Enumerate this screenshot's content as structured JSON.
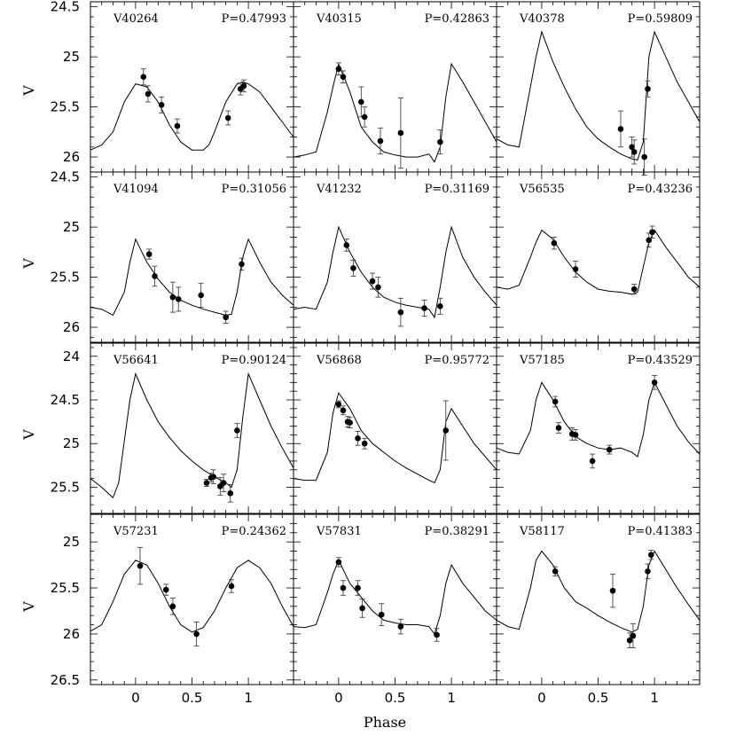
{
  "figure": {
    "xlabel": "Phase",
    "ylabel": "V",
    "xticks": [
      {
        "value": 0,
        "label": "0"
      },
      {
        "value": 0.5,
        "label": "0.5"
      },
      {
        "value": 1,
        "label": "1"
      }
    ]
  },
  "chart_data": [
    {
      "type": "scatter",
      "star": "V40264",
      "period": "P=0.47993",
      "xlim": [
        -0.4,
        1.4
      ],
      "ylim": [
        26.15,
        24.45
      ],
      "yticks": [
        "24.5",
        "25",
        "25.5",
        "26"
      ],
      "template": {
        "x": [
          -0.4,
          -0.3,
          -0.2,
          -0.1,
          0.0,
          0.1,
          0.2,
          0.3,
          0.4,
          0.5,
          0.6,
          0.65,
          0.7,
          0.8,
          0.9,
          0.95,
          1.0,
          1.1,
          1.2,
          1.3,
          1.4
        ],
        "y": [
          25.93,
          25.88,
          25.75,
          25.45,
          25.27,
          25.3,
          25.45,
          25.68,
          25.85,
          25.93,
          25.93,
          25.88,
          25.75,
          25.45,
          25.27,
          25.25,
          25.27,
          25.35,
          25.5,
          25.65,
          25.8
        ]
      },
      "points": [
        {
          "x": 0.07,
          "y": 25.2,
          "err": 0.08
        },
        {
          "x": 0.11,
          "y": 25.37,
          "err": 0.08
        },
        {
          "x": 0.23,
          "y": 25.48,
          "err": 0.08
        },
        {
          "x": 0.37,
          "y": 25.69,
          "err": 0.07
        },
        {
          "x": 0.82,
          "y": 25.61,
          "err": 0.07
        },
        {
          "x": 0.93,
          "y": 25.32,
          "err": 0.06
        },
        {
          "x": 0.96,
          "y": 25.29,
          "err": 0.06
        }
      ]
    },
    {
      "type": "scatter",
      "star": "V40315",
      "period": "P=0.42863",
      "xlim": [
        -0.4,
        1.4
      ],
      "ylim": [
        26.15,
        24.45
      ],
      "yticks": [
        "24.5",
        "25",
        "25.5",
        "26"
      ],
      "template": {
        "x": [
          -0.4,
          -0.3,
          -0.2,
          -0.1,
          -0.05,
          0.0,
          0.1,
          0.2,
          0.3,
          0.4,
          0.5,
          0.6,
          0.7,
          0.8,
          0.85,
          0.9,
          0.95,
          1.0,
          1.1,
          1.2,
          1.3,
          1.4
        ],
        "y": [
          26.0,
          25.98,
          25.95,
          25.55,
          25.3,
          25.07,
          25.35,
          25.7,
          25.85,
          25.95,
          25.98,
          26.0,
          26.0,
          25.97,
          26.05,
          25.9,
          25.4,
          25.07,
          25.25,
          25.45,
          25.65,
          25.85
        ]
      },
      "points": [
        {
          "x": 0.0,
          "y": 25.12,
          "err": 0.06
        },
        {
          "x": 0.04,
          "y": 25.2,
          "err": 0.06
        },
        {
          "x": 0.2,
          "y": 25.45,
          "err": 0.15
        },
        {
          "x": 0.23,
          "y": 25.6,
          "err": 0.1
        },
        {
          "x": 0.37,
          "y": 25.84,
          "err": 0.13
        },
        {
          "x": 0.55,
          "y": 25.76,
          "err": 0.35
        },
        {
          "x": 0.9,
          "y": 25.85,
          "err": 0.12
        }
      ]
    },
    {
      "type": "scatter",
      "star": "V40378",
      "period": "P=0.59809",
      "xlim": [
        -0.4,
        1.4
      ],
      "ylim": [
        26.15,
        24.45
      ],
      "yticks": [
        "24.5",
        "25",
        "25.5",
        "26"
      ],
      "template": {
        "x": [
          -0.4,
          -0.3,
          -0.2,
          -0.1,
          -0.05,
          0.0,
          0.1,
          0.2,
          0.3,
          0.4,
          0.5,
          0.6,
          0.7,
          0.8,
          0.85,
          0.9,
          0.95,
          1.0,
          1.1,
          1.2,
          1.3,
          1.4
        ],
        "y": [
          25.82,
          25.88,
          25.9,
          25.3,
          25.0,
          24.75,
          25.05,
          25.3,
          25.52,
          25.7,
          25.82,
          25.9,
          25.97,
          26.02,
          26.03,
          25.85,
          25.0,
          24.75,
          25.0,
          25.25,
          25.45,
          25.65
        ]
      },
      "points": [
        {
          "x": 0.7,
          "y": 25.72,
          "err": 0.18
        },
        {
          "x": 0.8,
          "y": 25.9,
          "err": 0.1
        },
        {
          "x": 0.82,
          "y": 25.95,
          "err": 0.12
        },
        {
          "x": 0.91,
          "y": 26.0,
          "err": 0.18
        },
        {
          "x": 0.94,
          "y": 25.32,
          "err": 0.08
        }
      ]
    },
    {
      "type": "scatter",
      "star": "V41094",
      "period": "P=0.31056",
      "xlim": [
        -0.4,
        1.4
      ],
      "ylim": [
        26.15,
        24.45
      ],
      "yticks": [
        "24.5",
        "25",
        "25.5",
        "26"
      ],
      "template": {
        "x": [
          -0.4,
          -0.3,
          -0.2,
          -0.1,
          -0.05,
          0.0,
          0.1,
          0.2,
          0.3,
          0.4,
          0.5,
          0.6,
          0.7,
          0.8,
          0.85,
          0.9,
          0.95,
          1.0,
          1.1,
          1.2,
          1.3,
          1.4
        ],
        "y": [
          25.8,
          25.82,
          25.88,
          25.65,
          25.35,
          25.12,
          25.35,
          25.52,
          25.65,
          25.73,
          25.78,
          25.82,
          25.85,
          25.88,
          25.87,
          25.65,
          25.3,
          25.12,
          25.35,
          25.55,
          25.68,
          25.78
        ]
      },
      "points": [
        {
          "x": 0.12,
          "y": 25.27,
          "err": 0.05
        },
        {
          "x": 0.17,
          "y": 25.49,
          "err": 0.1
        },
        {
          "x": 0.33,
          "y": 25.7,
          "err": 0.15
        },
        {
          "x": 0.38,
          "y": 25.72,
          "err": 0.12
        },
        {
          "x": 0.58,
          "y": 25.68,
          "err": 0.12
        },
        {
          "x": 0.8,
          "y": 25.9,
          "err": 0.06
        },
        {
          "x": 0.94,
          "y": 25.37,
          "err": 0.06
        }
      ]
    },
    {
      "type": "scatter",
      "star": "V41232",
      "period": "P=0.31169",
      "xlim": [
        -0.4,
        1.4
      ],
      "ylim": [
        26.15,
        24.45
      ],
      "yticks": [
        "24.5",
        "25",
        "25.5",
        "26"
      ],
      "template": {
        "x": [
          -0.4,
          -0.3,
          -0.2,
          -0.1,
          -0.05,
          0.0,
          0.1,
          0.2,
          0.3,
          0.4,
          0.5,
          0.6,
          0.7,
          0.8,
          0.85,
          0.9,
          0.95,
          1.0,
          1.1,
          1.2,
          1.3,
          1.4
        ],
        "y": [
          25.82,
          25.8,
          25.82,
          25.55,
          25.25,
          25.0,
          25.25,
          25.45,
          25.6,
          25.7,
          25.75,
          25.78,
          25.8,
          25.82,
          25.9,
          25.6,
          25.25,
          25.0,
          25.3,
          25.5,
          25.65,
          25.78
        ]
      },
      "points": [
        {
          "x": 0.07,
          "y": 25.18,
          "err": 0.06
        },
        {
          "x": 0.13,
          "y": 25.41,
          "err": 0.08
        },
        {
          "x": 0.3,
          "y": 25.54,
          "err": 0.08
        },
        {
          "x": 0.35,
          "y": 25.6,
          "err": 0.1
        },
        {
          "x": 0.55,
          "y": 25.85,
          "err": 0.14
        },
        {
          "x": 0.76,
          "y": 25.81,
          "err": 0.08
        },
        {
          "x": 0.9,
          "y": 25.79,
          "err": 0.08
        }
      ]
    },
    {
      "type": "scatter",
      "star": "V56535",
      "period": "P=0.43236",
      "xlim": [
        -0.4,
        1.4
      ],
      "ylim": [
        26.15,
        24.45
      ],
      "yticks": [
        "24.5",
        "25",
        "25.5",
        "26"
      ],
      "template": {
        "x": [
          -0.4,
          -0.3,
          -0.2,
          -0.1,
          -0.05,
          0.0,
          0.1,
          0.2,
          0.3,
          0.4,
          0.5,
          0.6,
          0.7,
          0.8,
          0.85,
          0.9,
          0.95,
          1.0,
          1.1,
          1.2,
          1.3,
          1.4
        ],
        "y": [
          25.6,
          25.62,
          25.58,
          25.3,
          25.15,
          25.03,
          25.12,
          25.3,
          25.45,
          25.55,
          25.62,
          25.64,
          25.65,
          25.67,
          25.65,
          25.4,
          25.15,
          25.03,
          25.2,
          25.35,
          25.5,
          25.6
        ]
      },
      "points": [
        {
          "x": 0.11,
          "y": 25.16,
          "err": 0.06
        },
        {
          "x": 0.3,
          "y": 25.42,
          "err": 0.08
        },
        {
          "x": 0.82,
          "y": 25.62,
          "err": 0.05
        },
        {
          "x": 0.95,
          "y": 25.13,
          "err": 0.07
        },
        {
          "x": 0.98,
          "y": 25.05,
          "err": 0.06
        }
      ]
    },
    {
      "type": "scatter",
      "star": "V56641",
      "period": "P=0.90124",
      "xlim": [
        -0.4,
        1.4
      ],
      "ylim": [
        25.8,
        23.85
      ],
      "yticks": [
        "24",
        "24.5",
        "25",
        "25.5"
      ],
      "template": {
        "x": [
          -0.4,
          -0.3,
          -0.2,
          -0.15,
          -0.05,
          0.0,
          0.1,
          0.2,
          0.3,
          0.4,
          0.5,
          0.6,
          0.7,
          0.8,
          0.85,
          0.9,
          0.95,
          1.0,
          1.1,
          1.2,
          1.3,
          1.4
        ],
        "y": [
          25.4,
          25.5,
          25.62,
          25.45,
          24.5,
          24.2,
          24.5,
          24.75,
          24.93,
          25.08,
          25.2,
          25.3,
          25.38,
          25.45,
          25.5,
          25.3,
          24.7,
          24.2,
          24.5,
          24.8,
          25.05,
          25.28
        ]
      },
      "points": [
        {
          "x": 0.63,
          "y": 25.45,
          "err": 0.04
        },
        {
          "x": 0.67,
          "y": 25.39,
          "err": 0.05
        },
        {
          "x": 0.69,
          "y": 25.38,
          "err": 0.08
        },
        {
          "x": 0.75,
          "y": 25.49,
          "err": 0.1
        },
        {
          "x": 0.78,
          "y": 25.45,
          "err": 0.1
        },
        {
          "x": 0.84,
          "y": 25.57,
          "err": 0.1
        },
        {
          "x": 0.9,
          "y": 24.85,
          "err": 0.08
        }
      ]
    },
    {
      "type": "scatter",
      "star": "V56868",
      "period": "P=0.95772",
      "xlim": [
        -0.4,
        1.4
      ],
      "ylim": [
        25.8,
        23.85
      ],
      "yticks": [
        "24",
        "24.5",
        "25",
        "25.5"
      ],
      "template": {
        "x": [
          -0.4,
          -0.3,
          -0.2,
          -0.1,
          -0.05,
          0.0,
          0.1,
          0.2,
          0.3,
          0.4,
          0.5,
          0.6,
          0.7,
          0.8,
          0.85,
          0.9,
          0.95,
          1.0,
          1.1,
          1.2,
          1.3,
          1.4
        ],
        "y": [
          25.4,
          25.42,
          25.42,
          25.1,
          24.65,
          24.42,
          24.6,
          24.85,
          25.0,
          25.1,
          25.2,
          25.28,
          25.35,
          25.42,
          25.45,
          25.3,
          24.75,
          24.6,
          24.8,
          25.0,
          25.15,
          25.3
        ]
      },
      "points": [
        {
          "x": 0.0,
          "y": 24.55,
          "err": 0.04
        },
        {
          "x": 0.04,
          "y": 24.62,
          "err": 0.05
        },
        {
          "x": 0.08,
          "y": 24.75,
          "err": 0.06
        },
        {
          "x": 0.1,
          "y": 24.76,
          "err": 0.06
        },
        {
          "x": 0.17,
          "y": 24.94,
          "err": 0.08
        },
        {
          "x": 0.23,
          "y": 25.0,
          "err": 0.06
        },
        {
          "x": 0.95,
          "y": 24.85,
          "err": 0.34
        }
      ]
    },
    {
      "type": "scatter",
      "star": "V57185",
      "period": "P=0.43529",
      "xlim": [
        -0.4,
        1.4
      ],
      "ylim": [
        25.8,
        23.85
      ],
      "yticks": [
        "24",
        "24.5",
        "25",
        "25.5"
      ],
      "template": {
        "x": [
          -0.4,
          -0.3,
          -0.2,
          -0.1,
          -0.05,
          0.0,
          0.1,
          0.2,
          0.3,
          0.4,
          0.5,
          0.6,
          0.7,
          0.8,
          0.85,
          0.9,
          0.95,
          1.0,
          1.1,
          1.2,
          1.3,
          1.4
        ],
        "y": [
          25.05,
          25.1,
          25.12,
          24.85,
          24.5,
          24.3,
          24.5,
          24.75,
          24.92,
          25.0,
          25.05,
          25.07,
          25.05,
          25.1,
          25.15,
          24.9,
          24.5,
          24.3,
          24.55,
          24.8,
          24.98,
          25.12
        ]
      },
      "points": [
        {
          "x": 0.12,
          "y": 24.52,
          "err": 0.06
        },
        {
          "x": 0.15,
          "y": 24.82,
          "err": 0.06
        },
        {
          "x": 0.27,
          "y": 24.89,
          "err": 0.07
        },
        {
          "x": 0.3,
          "y": 24.9,
          "err": 0.06
        },
        {
          "x": 0.45,
          "y": 25.2,
          "err": 0.08
        },
        {
          "x": 0.6,
          "y": 25.07,
          "err": 0.05
        },
        {
          "x": 1.0,
          "y": 24.3,
          "err": 0.08
        }
      ]
    },
    {
      "type": "scatter",
      "star": "V57231",
      "period": "P=0.24362",
      "xlim": [
        -0.4,
        1.4
      ],
      "ylim": [
        26.55,
        24.7
      ],
      "yticks": [
        "25",
        "25.5",
        "26",
        "26.5"
      ],
      "template": {
        "x": [
          -0.4,
          -0.3,
          -0.2,
          -0.1,
          0.0,
          0.1,
          0.2,
          0.3,
          0.4,
          0.5,
          0.6,
          0.7,
          0.8,
          0.9,
          1.0,
          1.1,
          1.2,
          1.3,
          1.4
        ],
        "y": [
          25.97,
          25.9,
          25.65,
          25.35,
          25.2,
          25.25,
          25.45,
          25.7,
          25.9,
          25.98,
          25.93,
          25.75,
          25.5,
          25.28,
          25.2,
          25.28,
          25.45,
          25.7,
          25.92
        ]
      },
      "points": [
        {
          "x": 0.04,
          "y": 25.26,
          "err": 0.2
        },
        {
          "x": 0.27,
          "y": 25.52,
          "err": 0.06
        },
        {
          "x": 0.33,
          "y": 25.7,
          "err": 0.09
        },
        {
          "x": 0.54,
          "y": 26.0,
          "err": 0.13
        },
        {
          "x": 0.85,
          "y": 25.48,
          "err": 0.07
        }
      ]
    },
    {
      "type": "scatter",
      "star": "V57831",
      "period": "P=0.38291",
      "xlim": [
        -0.4,
        1.4
      ],
      "ylim": [
        26.55,
        24.7
      ],
      "yticks": [
        "25",
        "25.5",
        "26",
        "26.5"
      ],
      "template": {
        "x": [
          -0.4,
          -0.3,
          -0.2,
          -0.1,
          -0.05,
          0.0,
          0.1,
          0.2,
          0.3,
          0.4,
          0.5,
          0.6,
          0.7,
          0.8,
          0.85,
          0.9,
          0.95,
          1.0,
          1.1,
          1.2,
          1.3,
          1.4
        ],
        "y": [
          25.92,
          25.93,
          25.9,
          25.55,
          25.35,
          25.2,
          25.45,
          25.6,
          25.75,
          25.85,
          25.88,
          25.9,
          25.9,
          25.92,
          26.0,
          25.8,
          25.45,
          25.25,
          25.45,
          25.6,
          25.75,
          25.85
        ]
      },
      "points": [
        {
          "x": 0.0,
          "y": 25.22,
          "err": 0.05
        },
        {
          "x": 0.04,
          "y": 25.5,
          "err": 0.08
        },
        {
          "x": 0.17,
          "y": 25.5,
          "err": 0.08
        },
        {
          "x": 0.21,
          "y": 25.72,
          "err": 0.1
        },
        {
          "x": 0.38,
          "y": 25.79,
          "err": 0.12
        },
        {
          "x": 0.55,
          "y": 25.92,
          "err": 0.08
        },
        {
          "x": 0.87,
          "y": 26.01,
          "err": 0.07
        }
      ]
    },
    {
      "type": "scatter",
      "star": "V58117",
      "period": "P=0.41383",
      "xlim": [
        -0.4,
        1.4
      ],
      "ylim": [
        26.55,
        24.7
      ],
      "yticks": [
        "25",
        "25.5",
        "26",
        "26.5"
      ],
      "template": {
        "x": [
          -0.4,
          -0.3,
          -0.2,
          -0.1,
          -0.05,
          0.0,
          0.1,
          0.2,
          0.3,
          0.4,
          0.5,
          0.6,
          0.7,
          0.8,
          0.85,
          0.9,
          0.95,
          1.0,
          1.1,
          1.2,
          1.3,
          1.4
        ],
        "y": [
          25.85,
          25.92,
          25.95,
          25.5,
          25.2,
          25.1,
          25.25,
          25.5,
          25.65,
          25.72,
          25.8,
          25.87,
          25.93,
          25.98,
          25.95,
          25.7,
          25.25,
          25.1,
          25.3,
          25.5,
          25.68,
          25.85
        ]
      },
      "points": [
        {
          "x": 0.12,
          "y": 25.32,
          "err": 0.05
        },
        {
          "x": 0.63,
          "y": 25.53,
          "err": 0.18
        },
        {
          "x": 0.78,
          "y": 26.07,
          "err": 0.08
        },
        {
          "x": 0.81,
          "y": 26.02,
          "err": 0.13
        },
        {
          "x": 0.94,
          "y": 25.32,
          "err": 0.08
        },
        {
          "x": 0.97,
          "y": 25.14,
          "err": 0.05
        }
      ]
    }
  ]
}
